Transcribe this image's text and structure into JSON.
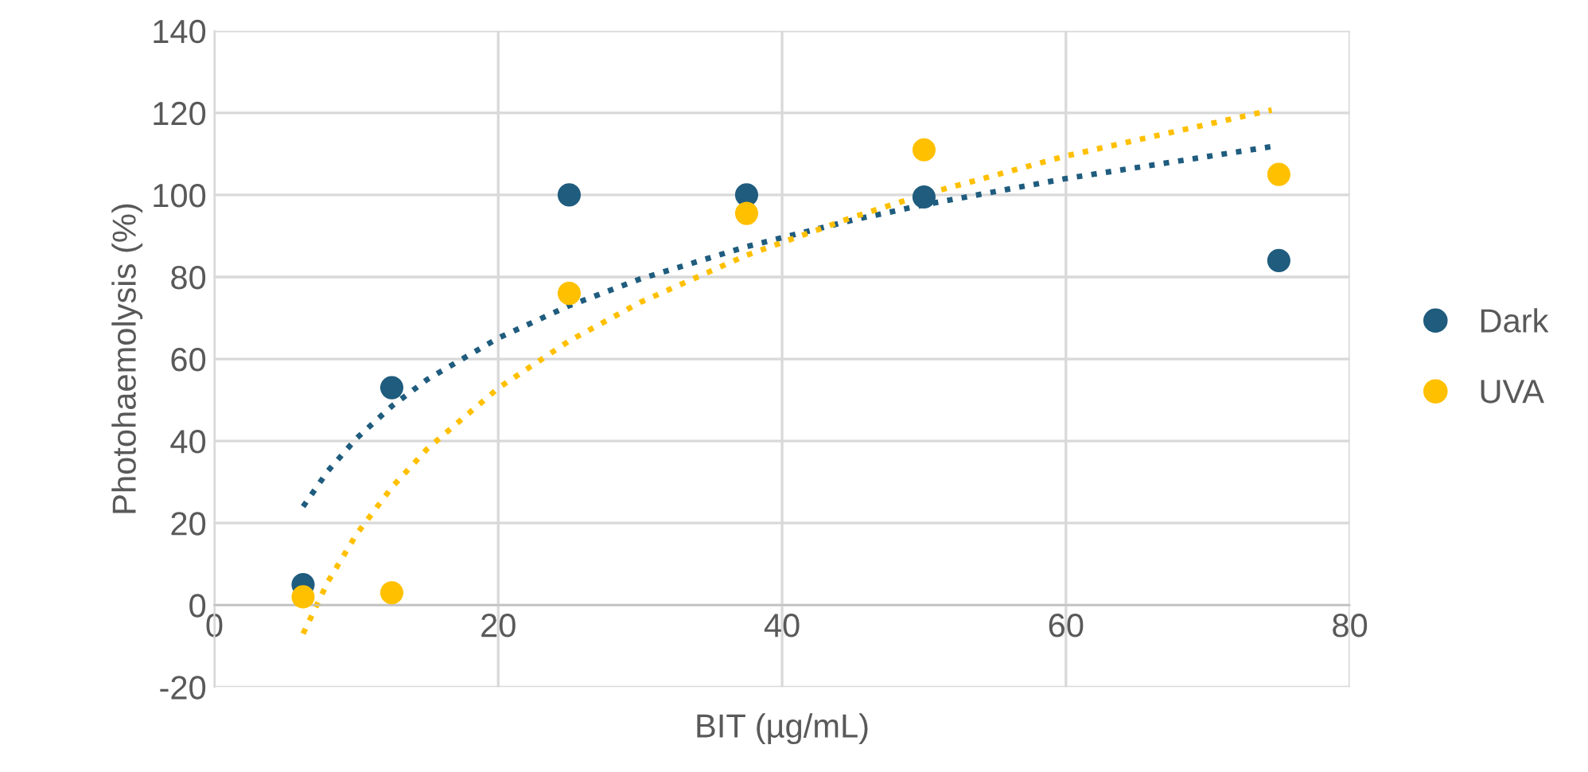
{
  "chart_data": {
    "type": "scatter",
    "xlabel": "BIT (µg/mL)",
    "ylabel": "Photohaemolysis (%)",
    "x": [
      6.25,
      12.5,
      25,
      37.5,
      50,
      75
    ],
    "series": [
      {
        "name": "Dark",
        "color": "#1f5c7e",
        "values": [
          5,
          53,
          100,
          100,
          99.5,
          84
        ]
      },
      {
        "name": "UVA",
        "color": "#ffc000",
        "values": [
          2,
          3,
          76,
          95.5,
          111,
          105
        ]
      },
      {
        "type": "line",
        "line_style": "dotted",
        "marker": "none",
        "color": "#1f5c7e",
        "x": [
          6.25,
          8,
          10,
          12.5,
          15,
          20,
          25,
          30,
          37.5,
          45,
          50,
          60,
          74.5
        ],
        "values": [
          24.0,
          32.7,
          40.6,
          48.5,
          55.0,
          65.1,
          73.0,
          79.5,
          87.4,
          93.9,
          97.6,
          104.0,
          111.8
        ]
      },
      {
        "type": "line",
        "line_style": "dotted",
        "marker": "none",
        "color": "#ffc000",
        "x": [
          6.25,
          8,
          10,
          12.5,
          15,
          20,
          25,
          30,
          37.5,
          45,
          50,
          60,
          74.5
        ],
        "values": [
          -7.0,
          5.7,
          17.2,
          28.7,
          38.1,
          52.9,
          64.4,
          73.8,
          85.3,
          94.6,
          100.1,
          109.5,
          120.7
        ]
      }
    ],
    "marker": "circle",
    "xlim": [
      0,
      80
    ],
    "xticks": [
      0,
      20,
      40,
      60,
      80
    ],
    "ylim": [
      -20,
      140
    ],
    "yticks": [
      -20,
      0,
      20,
      40,
      60,
      80,
      100,
      120,
      140
    ],
    "grid": true,
    "legend": "right"
  }
}
